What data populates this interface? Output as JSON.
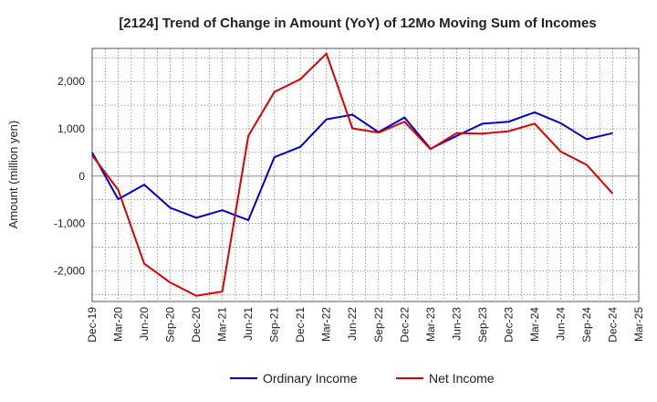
{
  "chart_data": {
    "type": "line",
    "title": "[2124]  Trend of Change in Amount (YoY) of 12Mo Moving Sum of Incomes",
    "ylabel": "Amount (million yen)",
    "xlabel": "",
    "ylim": [
      -2650,
      2700
    ],
    "yticks": [
      -2000,
      -1000,
      0,
      1000,
      2000
    ],
    "ytick_labels": [
      "-2,000",
      "-1,000",
      "0",
      "1,000",
      "2,000"
    ],
    "categories": [
      "Dec-19",
      "Mar-20",
      "Jun-20",
      "Sep-20",
      "Dec-20",
      "Mar-21",
      "Jun-21",
      "Sep-21",
      "Dec-21",
      "Mar-22",
      "Jun-22",
      "Sep-22",
      "Dec-22",
      "Mar-23",
      "Jun-23",
      "Sep-23",
      "Dec-23",
      "Mar-24",
      "Jun-24",
      "Sep-24",
      "Dec-24",
      "Mar-25"
    ],
    "grid": true,
    "legend_position": "bottom",
    "series": [
      {
        "name": "Ordinary Income",
        "color": "#0000cc",
        "values": [
          500,
          -490,
          -180,
          -670,
          -880,
          -720,
          -930,
          400,
          620,
          1200,
          1300,
          930,
          1240,
          580,
          850,
          1110,
          1150,
          1350,
          1120,
          780,
          910,
          null
        ]
      },
      {
        "name": "Net Income",
        "color": "#dd0000",
        "values": [
          440,
          -290,
          -1850,
          -2250,
          -2530,
          -2440,
          850,
          1780,
          2050,
          2590,
          1010,
          920,
          1150,
          570,
          910,
          900,
          950,
          1110,
          520,
          240,
          -370,
          null
        ]
      }
    ]
  }
}
